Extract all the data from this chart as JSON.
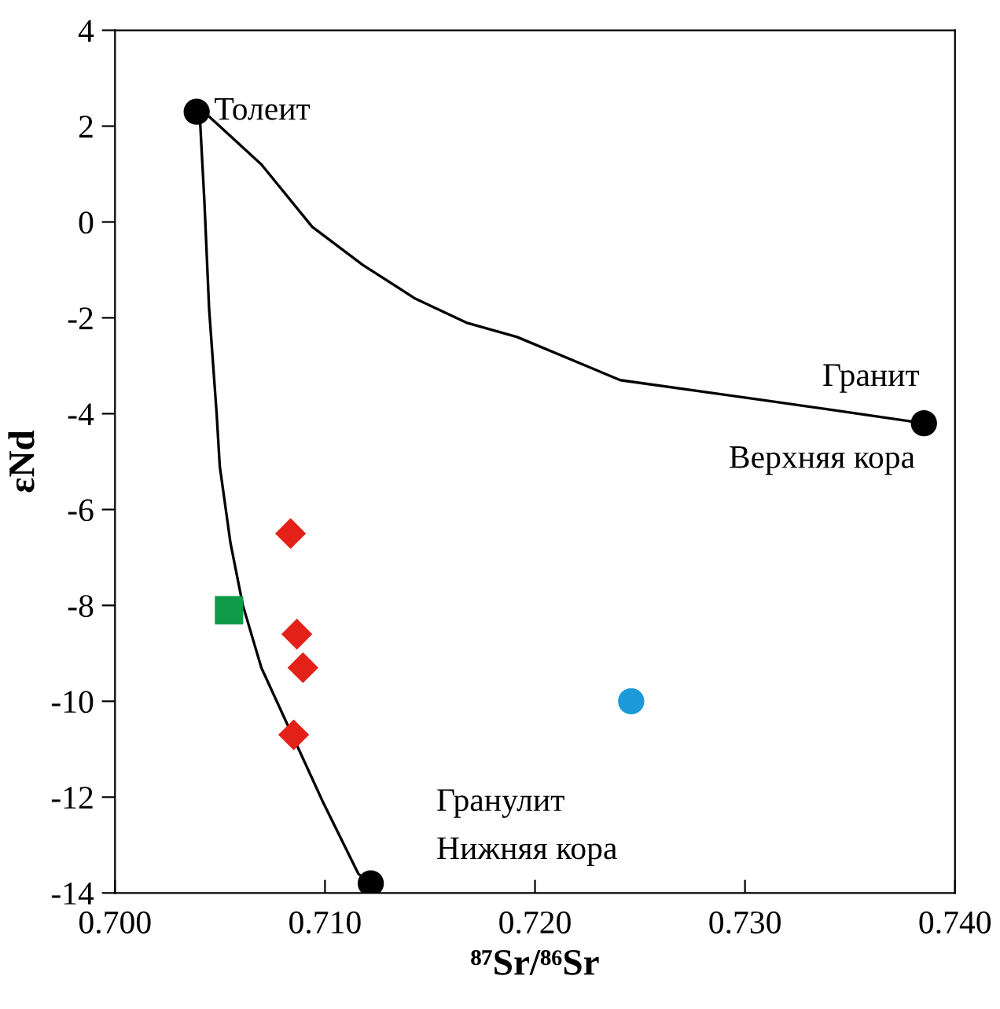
{
  "chart_data": {
    "type": "scatter",
    "xlabel": "⁸⁷Sr/⁸⁶Sr",
    "ylabel": "εNd",
    "xlim": [
      0.7,
      0.74
    ],
    "xticks": [
      {
        "value": 0.7,
        "label": "0.700"
      },
      {
        "value": 0.71,
        "label": "0.710"
      },
      {
        "value": 0.72,
        "label": "0.720"
      },
      {
        "value": 0.73,
        "label": "0.730"
      },
      {
        "value": 0.74,
        "label": "0.740"
      }
    ],
    "ylim": [
      -14,
      4
    ],
    "yticks": [
      -14,
      -12,
      -10,
      -8,
      -6,
      -4,
      -2,
      0,
      2,
      4
    ],
    "grid": false,
    "legend": false,
    "series": [
      {
        "type": "line",
        "color": "#000000",
        "marker": "none",
        "line_style": "solid",
        "x": [
          0.70389,
          0.70448,
          0.70697,
          0.70939,
          0.71181,
          0.7143,
          0.71673,
          0.71915,
          0.72406,
          0.72898,
          0.73382,
          0.73852
        ],
        "values": [
          2.3,
          2.2,
          1.2,
          -0.1,
          -0.9,
          -1.6,
          -2.1,
          -2.4,
          -3.3,
          -3.6,
          -3.9,
          -4.2
        ]
      },
      {
        "type": "line",
        "color": "#000000",
        "marker": "none",
        "line_style": "solid",
        "x": [
          0.70389,
          0.70404,
          0.70426,
          0.70448,
          0.70484,
          0.70499,
          0.7055,
          0.70609,
          0.70697,
          0.7099,
          0.71159,
          0.71218
        ],
        "values": [
          2.3,
          2.2,
          0.4,
          -1.8,
          -4.0,
          -5.1,
          -6.7,
          -8.0,
          -9.3,
          -12.1,
          -13.6,
          -13.8
        ]
      },
      {
        "color": "#000000",
        "marker": "circle",
        "x": [
          0.70389,
          0.73852,
          0.71218
        ],
        "values": [
          2.3,
          -4.2,
          -13.8
        ]
      },
      {
        "color": "#e32119",
        "marker": "diamond",
        "x": [
          0.70836,
          0.70866,
          0.70895,
          0.70851
        ],
        "values": [
          -6.5,
          -8.6,
          -9.3,
          -10.7
        ]
      },
      {
        "color": "#0f9a48",
        "marker": "square",
        "x": [
          0.70543
        ],
        "values": [
          -8.1
        ]
      },
      {
        "color": "#1a9ad6",
        "marker": "circle",
        "x": [
          0.72458
        ],
        "values": [
          -10.0
        ]
      }
    ],
    "annotations": [
      {
        "text": "Толеит",
        "x": 0.70389,
        "y": 2.3
      },
      {
        "text": "Гранит",
        "x": 0.73852,
        "y": -4.2
      },
      {
        "text": "Верхняя кора",
        "x": 0.73852,
        "y": -4.2
      },
      {
        "text": "Гранулит",
        "x": 0.71218,
        "y": -13.8
      },
      {
        "text": "Нижняя кора",
        "x": 0.71218,
        "y": -13.8
      }
    ]
  }
}
